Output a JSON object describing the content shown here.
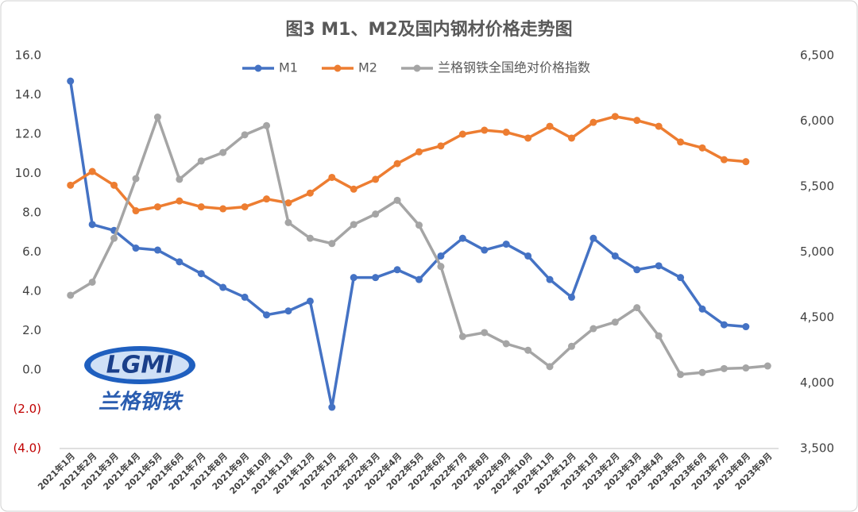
{
  "chart_data": {
    "type": "line",
    "title": "图3 M1、M2及国内钢材价格走势图",
    "categories": [
      "2021年1月",
      "2021年2月",
      "2021年3月",
      "2021年4月",
      "2021年5月",
      "2021年6月",
      "2021年7月",
      "2021年8月",
      "2021年9月",
      "2021年10月",
      "2021年11月",
      "2021年12月",
      "2022年1月",
      "2022年2月",
      "2022年3月",
      "2022年4月",
      "2022年5月",
      "2022年6月",
      "2022年7月",
      "2022年8月",
      "2022年9月",
      "2022年10月",
      "2022年11月",
      "2022年12月",
      "2023年1月",
      "2023年2月",
      "2023年3月",
      "2023年4月",
      "2023年5月",
      "2023年6月",
      "2023年7月",
      "2023年8月",
      "2023年9月"
    ],
    "series": [
      {
        "name": "M1",
        "color": "#4472c4",
        "values": [
          14.7,
          7.4,
          7.1,
          6.2,
          6.1,
          5.5,
          4.9,
          4.2,
          3.7,
          2.8,
          3.0,
          3.5,
          -1.9,
          4.7,
          4.7,
          5.1,
          4.6,
          5.8,
          6.7,
          6.1,
          6.4,
          5.8,
          4.6,
          3.7,
          6.7,
          5.8,
          5.1,
          5.3,
          4.7,
          3.1,
          2.3,
          2.2,
          null
        ]
      },
      {
        "name": "M2",
        "color": "#ed7d31",
        "values": [
          9.4,
          10.1,
          9.4,
          8.1,
          8.3,
          8.6,
          8.3,
          8.2,
          8.3,
          8.7,
          8.5,
          9.0,
          9.8,
          9.2,
          9.7,
          10.5,
          11.1,
          11.4,
          12.0,
          12.2,
          12.1,
          11.8,
          12.4,
          11.8,
          12.6,
          12.9,
          12.7,
          12.4,
          11.6,
          11.3,
          10.7,
          10.6,
          null
        ]
      },
      {
        "name": "兰格钢铁全国绝对价格指数",
        "color": "#a5a5a5",
        "axis": "y2",
        "values": [
          4670,
          4770,
          5105,
          5560,
          6030,
          5555,
          5695,
          5760,
          5895,
          5965,
          5225,
          5105,
          5065,
          5210,
          5290,
          5395,
          5205,
          4890,
          4355,
          4385,
          4300,
          4250,
          4125,
          4280,
          4415,
          4465,
          4575,
          4360,
          4065,
          4080,
          4110,
          4115,
          4130
        ]
      }
    ],
    "ylim": [
      -4,
      16
    ],
    "yticks": [
      {
        "value": -4,
        "label": "(4.0)"
      },
      {
        "value": -2,
        "label": "(2.0)"
      },
      {
        "value": 0,
        "label": "0.0"
      },
      {
        "value": 2,
        "label": "2.0"
      },
      {
        "value": 4,
        "label": "4.0"
      },
      {
        "value": 6,
        "label": "6.0"
      },
      {
        "value": 8,
        "label": "8.0"
      },
      {
        "value": 10,
        "label": "10.0"
      },
      {
        "value": 12,
        "label": "12.0"
      },
      {
        "value": 14,
        "label": "14.0"
      },
      {
        "value": 16,
        "label": "16.0"
      }
    ],
    "y2lim": [
      3500,
      6500
    ],
    "y2ticks": [
      {
        "value": 3500,
        "label": "3,500"
      },
      {
        "value": 4000,
        "label": "4,000"
      },
      {
        "value": 4500,
        "label": "4,500"
      },
      {
        "value": 5000,
        "label": "5,000"
      },
      {
        "value": 5500,
        "label": "5,500"
      },
      {
        "value": 6000,
        "label": "6,000"
      },
      {
        "value": 6500,
        "label": "6,500"
      }
    ],
    "negative_label_color": "#c00000",
    "legend": "top",
    "grid": false,
    "watermark": {
      "mark": "LGMI",
      "name": "兰格钢铁"
    }
  }
}
